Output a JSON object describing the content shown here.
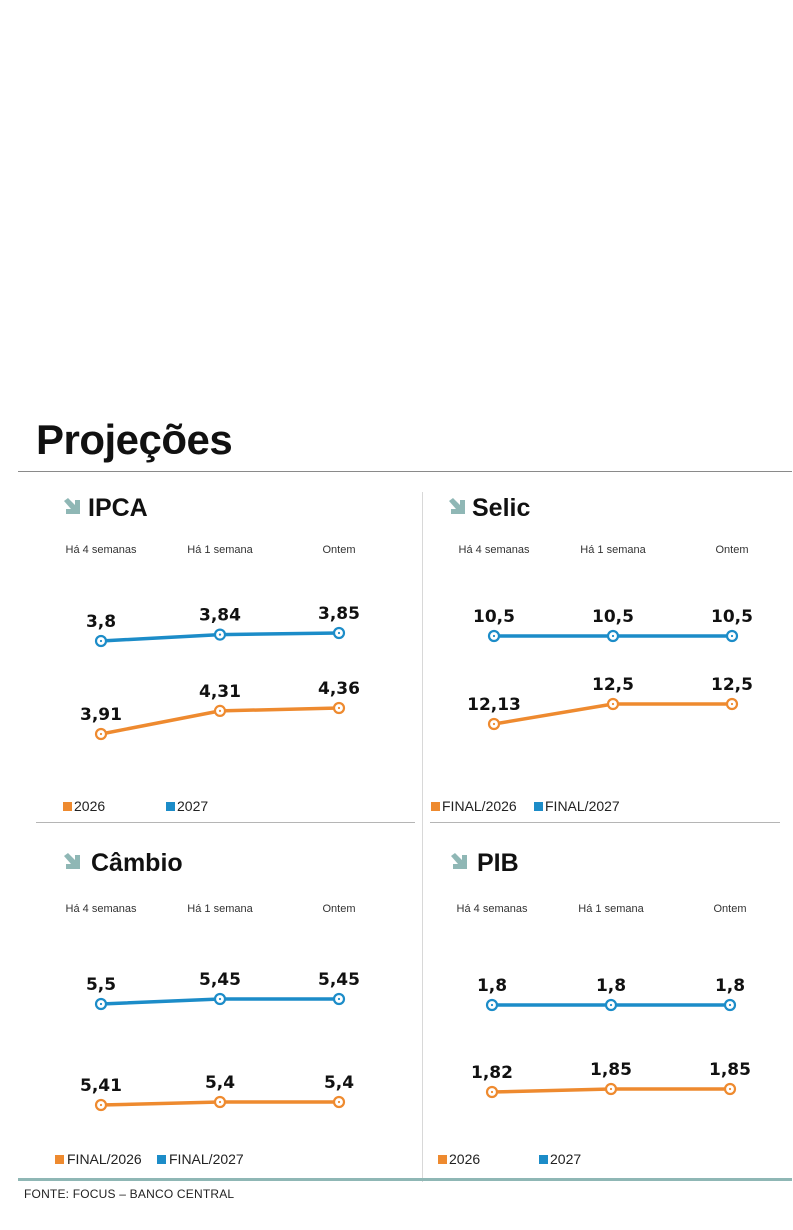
{
  "page_title": "Projeções",
  "source": "FONTE: FOCUS – BANCO CENTRAL",
  "colors": {
    "orange": "#EE8A2F",
    "blue": "#1C8CC8",
    "arrow": "#8FB7B5"
  },
  "chart_data": [
    {
      "type": "line",
      "title": "IPCA",
      "categories": [
        "Há 4 semanas",
        "Há 1 semana",
        "Ontem"
      ],
      "series": [
        {
          "name": "2026",
          "color": "orange",
          "values": [
            3.91,
            4.31,
            4.36
          ],
          "labels": [
            "3,91",
            "4,31",
            "4,36"
          ]
        },
        {
          "name": "2027",
          "color": "blue",
          "values": [
            3.8,
            3.84,
            3.85
          ],
          "labels": [
            "3,8",
            "3,84",
            "3,85"
          ]
        }
      ]
    },
    {
      "type": "line",
      "title": "Selic",
      "categories": [
        "Há 4 semanas",
        "Há 1 semana",
        "Ontem"
      ],
      "series": [
        {
          "name": "FINAL/2026",
          "color": "orange",
          "values": [
            12.13,
            12.5,
            12.5
          ],
          "labels": [
            "12,13",
            "12,5",
            "12,5"
          ]
        },
        {
          "name": "FINAL/2027",
          "color": "blue",
          "values": [
            10.5,
            10.5,
            10.5
          ],
          "labels": [
            "10,5",
            "10,5",
            "10,5"
          ]
        }
      ]
    },
    {
      "type": "line",
      "title": "Câmbio",
      "categories": [
        "Há 4 semanas",
        "Há 1 semana",
        "Ontem"
      ],
      "series": [
        {
          "name": "FINAL/2026",
          "color": "orange",
          "values": [
            5.41,
            5.4,
            5.4
          ],
          "labels": [
            "5,41",
            "5,4",
            "5,4"
          ]
        },
        {
          "name": "FINAL/2027",
          "color": "blue",
          "values": [
            5.5,
            5.45,
            5.45
          ],
          "labels": [
            "5,5",
            "5,45",
            "5,45"
          ]
        }
      ]
    },
    {
      "type": "line",
      "title": "PIB",
      "categories": [
        "Há 4 semanas",
        "Há 1 semana",
        "Ontem"
      ],
      "series": [
        {
          "name": "2026",
          "color": "orange",
          "values": [
            1.82,
            1.85,
            1.85
          ],
          "labels": [
            "1,82",
            "1,85",
            "1,85"
          ]
        },
        {
          "name": "2027",
          "color": "blue",
          "values": [
            1.8,
            1.8,
            1.8
          ],
          "labels": [
            "1,8",
            "1,8",
            "1,8"
          ]
        }
      ]
    }
  ]
}
